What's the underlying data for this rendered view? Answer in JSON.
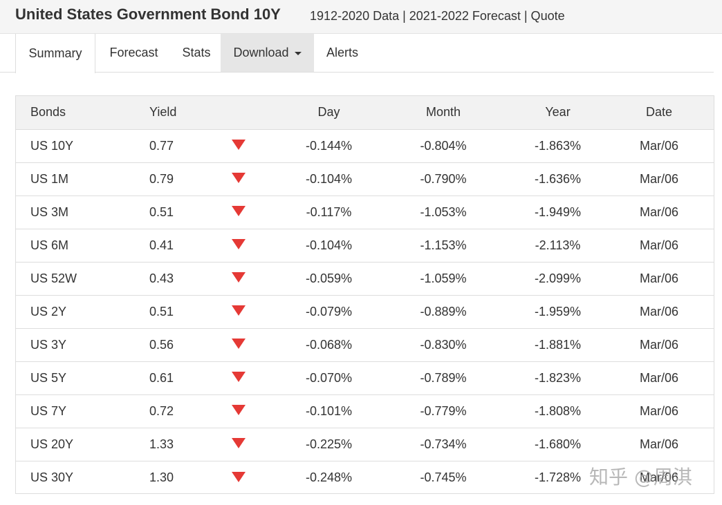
{
  "header": {
    "title": "United States Government Bond 10Y",
    "subtitle": "1912-2020 Data | 2021-2022 Forecast | Quote"
  },
  "tabs": [
    {
      "label": "Summary"
    },
    {
      "label": "Forecast"
    },
    {
      "label": "Stats"
    },
    {
      "label": "Download"
    },
    {
      "label": "Alerts"
    }
  ],
  "table": {
    "columns": [
      "Bonds",
      "Yield",
      "",
      "Day",
      "Month",
      "Year",
      "Date"
    ],
    "direction_icon": "down-triangle-icon",
    "direction_color": "#e53935",
    "rows": [
      {
        "bond": "US 10Y",
        "yield": "0.77",
        "day": "-0.144%",
        "month": "-0.804%",
        "year": "-1.863%",
        "date": "Mar/06"
      },
      {
        "bond": "US 1M",
        "yield": "0.79",
        "day": "-0.104%",
        "month": "-0.790%",
        "year": "-1.636%",
        "date": "Mar/06"
      },
      {
        "bond": "US 3M",
        "yield": "0.51",
        "day": "-0.117%",
        "month": "-1.053%",
        "year": "-1.949%",
        "date": "Mar/06"
      },
      {
        "bond": "US 6M",
        "yield": "0.41",
        "day": "-0.104%",
        "month": "-1.153%",
        "year": "-2.113%",
        "date": "Mar/06"
      },
      {
        "bond": "US 52W",
        "yield": "0.43",
        "day": "-0.059%",
        "month": "-1.059%",
        "year": "-2.099%",
        "date": "Mar/06"
      },
      {
        "bond": "US 2Y",
        "yield": "0.51",
        "day": "-0.079%",
        "month": "-0.889%",
        "year": "-1.959%",
        "date": "Mar/06"
      },
      {
        "bond": "US 3Y",
        "yield": "0.56",
        "day": "-0.068%",
        "month": "-0.830%",
        "year": "-1.881%",
        "date": "Mar/06"
      },
      {
        "bond": "US 5Y",
        "yield": "0.61",
        "day": "-0.070%",
        "month": "-0.789%",
        "year": "-1.823%",
        "date": "Mar/06"
      },
      {
        "bond": "US 7Y",
        "yield": "0.72",
        "day": "-0.101%",
        "month": "-0.779%",
        "year": "-1.808%",
        "date": "Mar/06"
      },
      {
        "bond": "US 20Y",
        "yield": "1.33",
        "day": "-0.225%",
        "month": "-0.734%",
        "year": "-1.680%",
        "date": "Mar/06"
      },
      {
        "bond": "US 30Y",
        "yield": "1.30",
        "day": "-0.248%",
        "month": "-0.745%",
        "year": "-1.728%",
        "date": "Mar/06"
      }
    ]
  },
  "watermark": "知乎 @周淇"
}
